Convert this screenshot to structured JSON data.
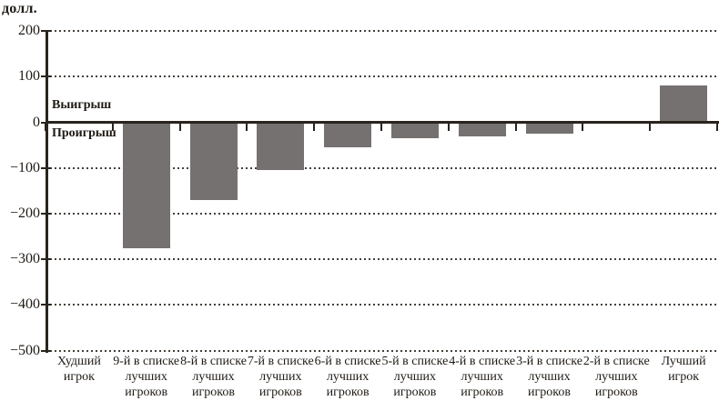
{
  "chart_data": {
    "type": "bar",
    "title": "долл.",
    "ylabel": "долл.",
    "xlabel": "",
    "ylim": [
      -500,
      200
    ],
    "yticks": [
      200,
      100,
      0,
      -100,
      -200,
      -300,
      -400,
      -500
    ],
    "grid": "horizontal-dotted",
    "legend": false,
    "categories": [
      "Худший игрок",
      "9-й в списке лучших игроков",
      "8-й в списке лучших игроков",
      "7-й в списке лучших игроков",
      "6-й в списке лучших игроков",
      "5-й в списке лучших игроков",
      "4-й в списке лучших игроков",
      "3-й в списке лучших игроков",
      "2-й в списке лучших игроков",
      "Лучший игрок"
    ],
    "category_lines": [
      [
        "Худший",
        "игрок"
      ],
      [
        "9-й в списке",
        "лучших",
        "игроков"
      ],
      [
        "8-й в списке",
        "лучших",
        "игроков"
      ],
      [
        "7-й в списке",
        "лучших",
        "игроков"
      ],
      [
        "6-й в списке",
        "лучших",
        "игроков"
      ],
      [
        "5-й в списке",
        "лучших",
        "игроков"
      ],
      [
        "4-й в списке",
        "лучших",
        "игроков"
      ],
      [
        "3-й в списке",
        "лучших",
        "игроков"
      ],
      [
        "2-й в списке",
        "лучших",
        "игроков"
      ],
      [
        "Лучший",
        "игрок"
      ]
    ],
    "values": [
      0,
      -275,
      -170,
      -105,
      -55,
      -35,
      -30,
      -25,
      0,
      80
    ],
    "annotations": [
      "Выигрыш",
      "Проигрыш"
    ]
  },
  "colors": {
    "bar": "#757170",
    "axis": "#2a241d",
    "grid": "#46403a",
    "text": "#1f1a14"
  }
}
